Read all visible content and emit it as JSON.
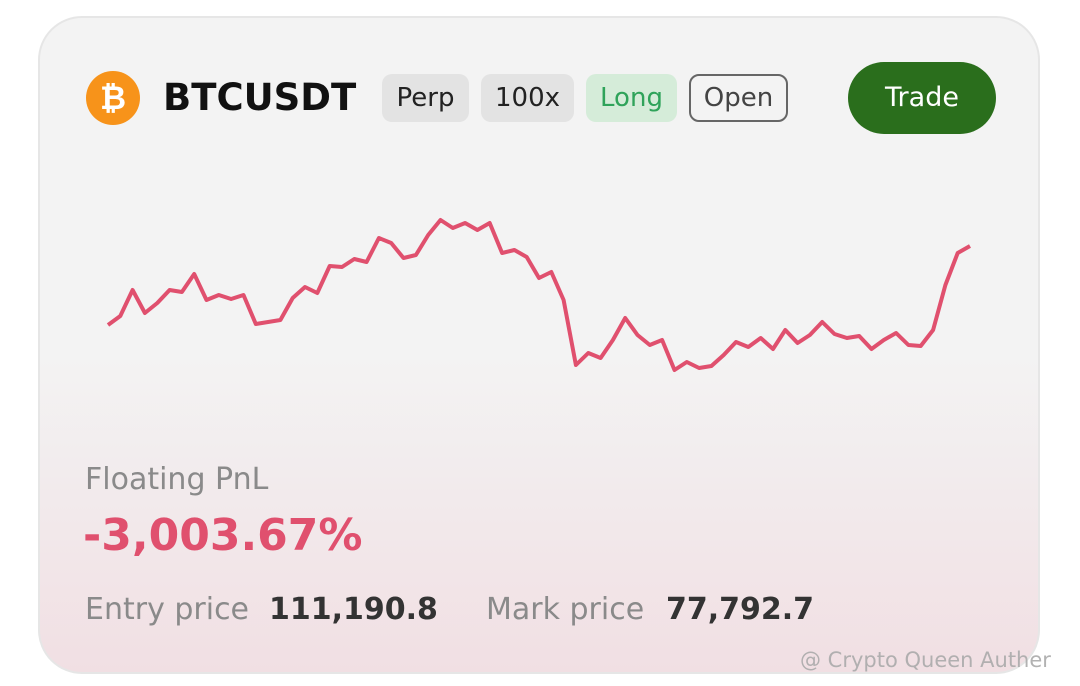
{
  "header": {
    "symbol": "BTCUSDT",
    "icon": "₿",
    "badges": [
      "Perp",
      "100x",
      "Long",
      "Open"
    ],
    "button": "Trade"
  },
  "sparkline": {
    "type": "line",
    "color": "#e0506e",
    "values": [
      75,
      84,
      110,
      87,
      97,
      110,
      108,
      126,
      100,
      105,
      101,
      105,
      76,
      78,
      80,
      102,
      113,
      107,
      134,
      133,
      141,
      138,
      162,
      157,
      142,
      145,
      165,
      180,
      172,
      177,
      170,
      177,
      147,
      150,
      143,
      122,
      128,
      100,
      35,
      47,
      42,
      60,
      82,
      65,
      55,
      60,
      30,
      38,
      32,
      34,
      45,
      58,
      53,
      62,
      51,
      70,
      57,
      65,
      78,
      66,
      62,
      64,
      51,
      60,
      67,
      55,
      54,
      70,
      115,
      147,
      154
    ]
  },
  "pnl": {
    "label": "Floating PnL",
    "value": "-3,003.67%"
  },
  "prices": {
    "entry_label": "Entry price",
    "entry": "111,190.8",
    "mark_label": "Mark price",
    "mark": "77,792.7"
  },
  "watermark": "@ Crypto Queen Auther"
}
